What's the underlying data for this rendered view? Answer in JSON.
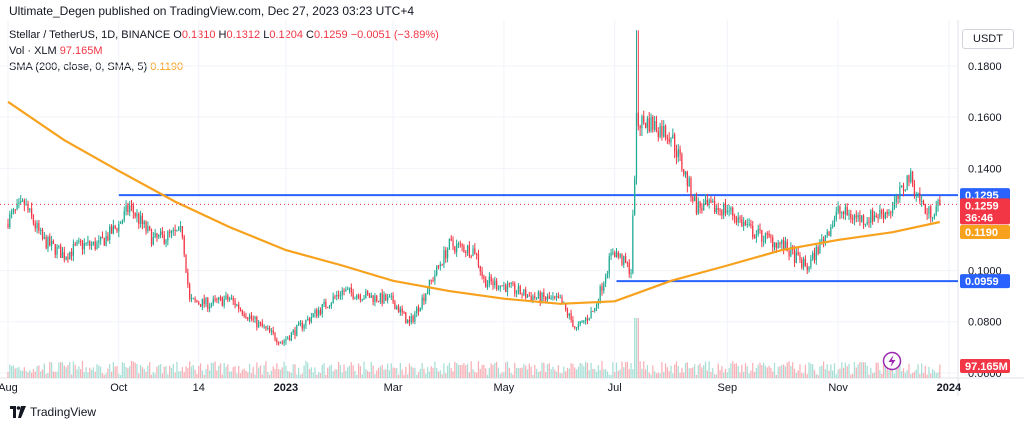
{
  "header": {
    "published": "Ultimate_Degen published on TradingView.com, Dec 27, 2023 03:23 UTC+4"
  },
  "legend": {
    "symbol": "Stellar / TetherUS, 1D, BINANCE",
    "o_label": "O",
    "o_val": "0.1310",
    "h_label": "H",
    "h_val": "0.1312",
    "l_label": "L",
    "l_val": "0.1204",
    "c_label": "C",
    "c_val": "0.1259",
    "change": "−0.0051 (−3.89%)",
    "vol_label": "Vol · XLM",
    "vol_val": "97.165M",
    "sma_label": "SMA (200, close, 0, SMA, 5)",
    "sma_val": "0.1190"
  },
  "currency": "USDT",
  "footer": {
    "brand": "TradingView"
  },
  "colors": {
    "up": "#22ab94",
    "down": "#f23645",
    "sma": "#f7a11d",
    "hline": "#2962ff",
    "vol_up": "#a8dfd6",
    "vol_down": "#f7b0b6",
    "grid": "#f0f3fa"
  },
  "chart_data": {
    "type": "candlestick",
    "symbol": "XLM/USDT",
    "interval": "1D",
    "ylim": [
      0.058,
      0.198
    ],
    "yticks": [
      "0.1800",
      "0.1600",
      "0.1400",
      "0.1000",
      "0.0800",
      "0.0600"
    ],
    "xticks": [
      "Aug",
      "Oct",
      "14",
      "2023",
      "Mar",
      "May",
      "Jul",
      "Sep",
      "Nov",
      "2024"
    ],
    "close_path": [
      [
        "2022-08-01",
        0.12
      ],
      [
        "2022-08-10",
        0.126
      ],
      [
        "2022-08-20",
        0.112
      ],
      [
        "2022-09-01",
        0.106
      ],
      [
        "2022-09-10",
        0.11
      ],
      [
        "2022-09-20",
        0.11
      ],
      [
        "2022-10-01",
        0.118
      ],
      [
        "2022-10-07",
        0.125
      ],
      [
        "2022-10-20",
        0.112
      ],
      [
        "2022-11-05",
        0.115
      ],
      [
        "2022-11-09",
        0.088
      ],
      [
        "2022-11-20",
        0.087
      ],
      [
        "2022-12-01",
        0.089
      ],
      [
        "2022-12-15",
        0.08
      ],
      [
        "2022-12-30",
        0.072
      ],
      [
        "2023-01-15",
        0.082
      ],
      [
        "2023-02-01",
        0.092
      ],
      [
        "2023-02-15",
        0.09
      ],
      [
        "2023-03-01",
        0.088
      ],
      [
        "2023-03-10",
        0.079
      ],
      [
        "2023-03-20",
        0.093
      ],
      [
        "2023-04-01",
        0.11
      ],
      [
        "2023-04-15",
        0.108
      ],
      [
        "2023-04-20",
        0.096
      ],
      [
        "2023-05-01",
        0.094
      ],
      [
        "2023-05-15",
        0.09
      ],
      [
        "2023-06-01",
        0.088
      ],
      [
        "2023-06-10",
        0.077
      ],
      [
        "2023-06-20",
        0.085
      ],
      [
        "2023-06-30",
        0.108
      ],
      [
        "2023-07-10",
        0.1
      ],
      [
        "2023-07-13",
        0.158
      ],
      [
        "2023-07-20",
        0.158
      ],
      [
        "2023-08-01",
        0.153
      ],
      [
        "2023-08-15",
        0.125
      ],
      [
        "2023-09-01",
        0.124
      ],
      [
        "2023-09-15",
        0.115
      ],
      [
        "2023-10-01",
        0.11
      ],
      [
        "2023-10-15",
        0.101
      ],
      [
        "2023-11-01",
        0.123
      ],
      [
        "2023-11-15",
        0.12
      ],
      [
        "2023-12-01",
        0.124
      ],
      [
        "2023-12-10",
        0.137
      ],
      [
        "2023-12-20",
        0.122
      ],
      [
        "2023-12-27",
        0.1259
      ]
    ],
    "sma_200": [
      [
        "2022-08-01",
        0.166
      ],
      [
        "2022-09-01",
        0.151
      ],
      [
        "2022-10-01",
        0.139
      ],
      [
        "2022-11-01",
        0.127
      ],
      [
        "2022-12-01",
        0.117
      ],
      [
        "2023-01-01",
        0.108
      ],
      [
        "2023-02-01",
        0.102
      ],
      [
        "2023-03-01",
        0.096
      ],
      [
        "2023-04-01",
        0.092
      ],
      [
        "2023-05-01",
        0.089
      ],
      [
        "2023-06-01",
        0.087
      ],
      [
        "2023-07-01",
        0.088
      ],
      [
        "2023-08-01",
        0.096
      ],
      [
        "2023-09-01",
        0.102
      ],
      [
        "2023-10-01",
        0.108
      ],
      [
        "2023-11-01",
        0.112
      ],
      [
        "2023-12-01",
        0.115
      ],
      [
        "2023-12-27",
        0.119
      ]
    ],
    "horizontal_lines": [
      {
        "value": 0.1295,
        "label": "0.1295",
        "start": "2022-10-01"
      },
      {
        "value": 0.0959,
        "label": "0.0959",
        "start": "2023-07-02"
      }
    ],
    "price_labels": {
      "last": "0.1259",
      "countdown": "36:46",
      "sma": "0.1190",
      "volume": "97.165M"
    }
  }
}
